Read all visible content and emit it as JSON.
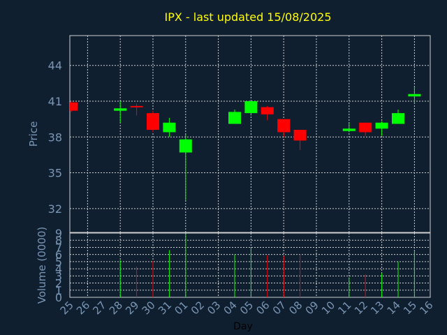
{
  "chart_data": {
    "type": "candlestick",
    "title": "IPX - last updated 15/08/2025",
    "xlabel": "Day",
    "price_ylabel": "Price",
    "volume_ylabel": "Volume (0000)",
    "x_ticks": [
      "25",
      "26",
      "27",
      "28",
      "29",
      "30",
      "31",
      "01",
      "02",
      "03",
      "04",
      "05",
      "06",
      "07",
      "08",
      "09",
      "10",
      "11",
      "12",
      "13",
      "14",
      "15",
      "16"
    ],
    "price_ticks": [
      32,
      35,
      38,
      41,
      44
    ],
    "price_ylim": [
      30,
      46.5
    ],
    "volume_ticks": [
      0,
      1,
      2,
      3,
      4,
      5,
      6,
      7,
      8,
      9
    ],
    "volume_ylim": [
      0,
      9
    ],
    "grid": true,
    "colors": {
      "background": "#0f1f30",
      "text": "#7a96b4",
      "title": "#ffff00",
      "up": "#00ff00",
      "down": "#ff0000",
      "grid": "#d0d0d0"
    },
    "candles": [
      {
        "day": "25",
        "x": 0,
        "open": 40.9,
        "high": 41.0,
        "low": 40.1,
        "close": 40.2,
        "volume": 0
      },
      {
        "day": "28",
        "x": 3,
        "open": 40.2,
        "high": 41.0,
        "low": 39.2,
        "close": 40.4,
        "volume": 5.2
      },
      {
        "day": "29",
        "x": 4,
        "open": 40.6,
        "high": 40.8,
        "low": 39.8,
        "close": 40.5,
        "volume": 4.3
      },
      {
        "day": "30",
        "x": 5,
        "open": 40.0,
        "high": 40.2,
        "low": 38.4,
        "close": 38.6,
        "volume": 5.1
      },
      {
        "day": "31",
        "x": 6,
        "open": 38.4,
        "high": 39.6,
        "low": 38.0,
        "close": 39.2,
        "volume": 6.6
      },
      {
        "day": "01",
        "x": 7,
        "open": 36.7,
        "high": 38.2,
        "low": 32.7,
        "close": 37.8,
        "volume": 8.9
      },
      {
        "day": "04",
        "x": 10,
        "open": 39.1,
        "high": 40.3,
        "low": 39.1,
        "close": 40.1,
        "volume": 6.0
      },
      {
        "day": "05",
        "x": 11,
        "open": 40.0,
        "high": 41.1,
        "low": 39.8,
        "close": 41.0,
        "volume": 7.0
      },
      {
        "day": "06",
        "x": 12,
        "open": 40.5,
        "high": 40.6,
        "low": 39.4,
        "close": 39.9,
        "volume": 5.9
      },
      {
        "day": "07",
        "x": 13,
        "open": 39.5,
        "high": 39.5,
        "low": 38.0,
        "close": 38.4,
        "volume": 5.8
      },
      {
        "day": "08",
        "x": 14,
        "open": 38.6,
        "high": 38.6,
        "low": 36.9,
        "close": 37.7,
        "volume": 6.0
      },
      {
        "day": "11",
        "x": 17,
        "open": 38.5,
        "high": 39.2,
        "low": 38.4,
        "close": 38.7,
        "volume": 2.8
      },
      {
        "day": "12",
        "x": 18,
        "open": 39.2,
        "high": 39.2,
        "low": 38.1,
        "close": 38.4,
        "volume": 3.2
      },
      {
        "day": "13",
        "x": 19,
        "open": 38.7,
        "high": 39.3,
        "low": 38.1,
        "close": 39.2,
        "volume": 3.4
      },
      {
        "day": "14",
        "x": 20,
        "open": 39.1,
        "high": 40.3,
        "low": 39.1,
        "close": 40.0,
        "volume": 5.0
      },
      {
        "day": "15",
        "x": 21,
        "open": 41.4,
        "high": 42.2,
        "low": 40.8,
        "close": 41.6,
        "volume": 6.5
      }
    ]
  }
}
